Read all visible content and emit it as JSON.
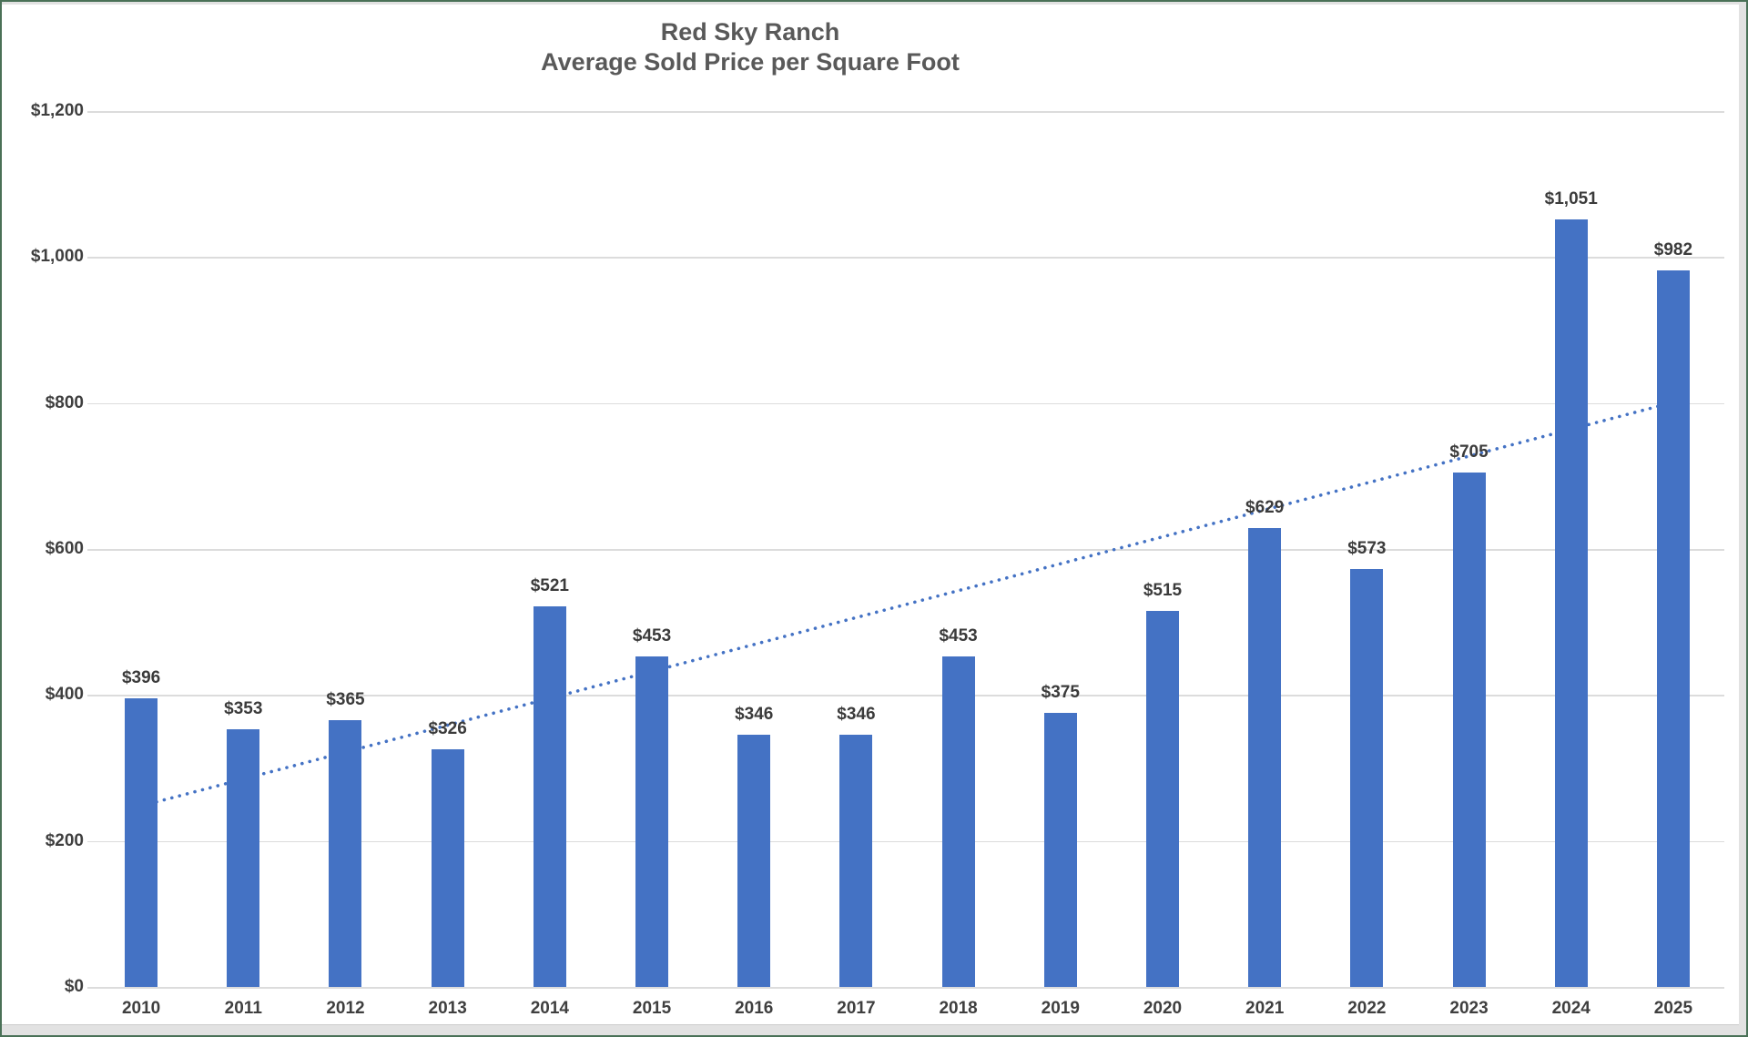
{
  "title": {
    "line1": "Red Sky Ranch",
    "line2": "Average Sold Price per Square Foot"
  },
  "colors": {
    "bar": "#4472C4",
    "trendline": "#4472C4",
    "gridline": "#dcdcdc",
    "frame_border_green": "#4a7157",
    "title_text": "#595959",
    "label_text": "#3f3f3f"
  },
  "chart_data": {
    "type": "bar",
    "title": "Red Sky Ranch",
    "subtitle": "Average Sold Price per Square Foot",
    "categories": [
      "2010",
      "2011",
      "2012",
      "2013",
      "2014",
      "2015",
      "2016",
      "2017",
      "2018",
      "2019",
      "2020",
      "2021",
      "2022",
      "2023",
      "2024",
      "2025"
    ],
    "values": [
      396,
      353,
      365,
      326,
      521,
      453,
      346,
      346,
      453,
      375,
      515,
      629,
      573,
      705,
      1051,
      982
    ],
    "value_labels": [
      "$396",
      "$353",
      "$365",
      "$326",
      "$521",
      "$453",
      "$346",
      "$346",
      "$453",
      "$375",
      "$515",
      "$629",
      "$573",
      "$705",
      "$1,051",
      "$982"
    ],
    "xlabel": "",
    "ylabel": "",
    "ylim": [
      0,
      1200
    ],
    "ytick_step": 200,
    "ytick_labels": [
      "$0",
      "$200",
      "$400",
      "$600",
      "$800",
      "$1,000",
      "$1,200"
    ],
    "grid": true,
    "legend": false,
    "trendline": {
      "type": "linear",
      "style": "dotted",
      "start_value": 248,
      "end_value": 801,
      "drawn_behind_bars": true
    }
  }
}
